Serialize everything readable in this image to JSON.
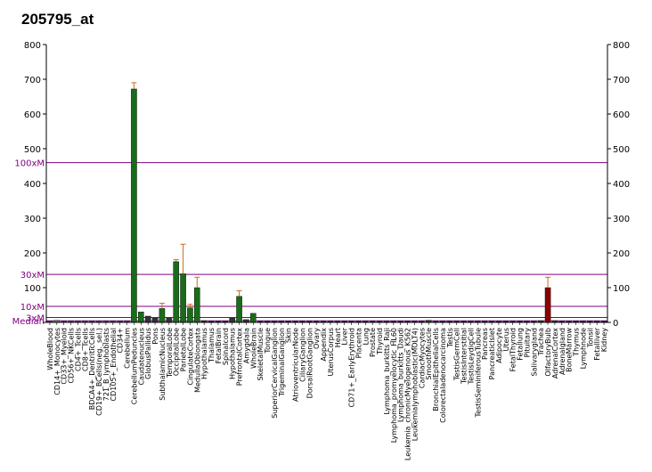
{
  "chart_data": {
    "type": "bar",
    "title": "205795_at",
    "ylim": [
      0,
      800
    ],
    "yticks": [
      0,
      100,
      200,
      300,
      400,
      500,
      600,
      700,
      800
    ],
    "reference_lines": [
      {
        "label": "100xM",
        "value": 460
      },
      {
        "label": "30xM",
        "value": 138
      },
      {
        "label": "10xM",
        "value": 46
      },
      {
        "label": "3xM",
        "value": 14
      },
      {
        "label": "Median",
        "value": 4.6
      }
    ],
    "categories": [
      "WholeBlood",
      "CD14+_Monocytes",
      "CD33+_Myeloid",
      "CD56+_NKCells",
      "CD4+_Tcells",
      "CD8+_Tcells",
      "BDCA4+_DentriticCells",
      "CD19+_BCells(neg._sel.)",
      "721_B_lymphoblasts",
      "CD105+_Endothelial",
      "CD34+",
      "Cerebellum",
      "CerebellumPeduncles",
      "Caudatenucleus",
      "GlobusPallidus",
      "Pons",
      "SubthalamicNucleus",
      "TemporalLobe",
      "OccipitalLobe",
      "ParietalLobe",
      "CingulateCortex",
      "MedullaOblongata",
      "Hypothalamus",
      "Thalamus",
      "FetalBrain",
      "Spinalcord",
      "Hypothalamus",
      "PrefrontalCortex",
      "Amygdala",
      "WholeBrain",
      "SkeletalMuscle",
      "Tongue",
      "SuperiorCervicalGanglion",
      "TrigeminalGanglion",
      "Skin",
      "AtrioventricularNode",
      "CiliaryGanglion",
      "DorsalRootGanglion",
      "Ovary",
      "Appendix",
      "UterusCorpus",
      "Heart",
      "Liver",
      "CD71+_EarlyErythroid",
      "Placenta",
      "Lung",
      "Prostate",
      "Thyroid",
      "Lymphoma_burkitts_Raji",
      "Lymphoma_promyelocytic_HL60",
      "Lymphoma_burkitts_Daudi",
      "Leukemia_chronicMyelogenous_K562",
      "Leukemialymphoblastic(MOLT4)",
      "CardiacMyocytes",
      "SmoothMuscle",
      "BronchialEpithelialCells",
      "Colorectaladenocarcinoma",
      "Testis",
      "TestisGermCell",
      "TestisInterstitial",
      "TestisLeydigCell",
      "TestisSeminiferousTubule",
      "Pancreas",
      "PancreaticIslet",
      "Adipocyte",
      "Uterus",
      "FetalThyroid",
      "Fetallung",
      "Pituitary",
      "Salivarygland",
      "Trachea",
      "OlfactoryBulb",
      "AdrenalCortex",
      "Adrenalgland",
      "BoneMarrow",
      "Thymus",
      "Lymphnode",
      "Tonsil",
      "Fetalliver",
      "Kidney"
    ],
    "values": [
      3,
      6,
      3,
      3,
      3,
      3,
      3,
      3,
      3,
      3,
      3,
      3,
      672,
      30,
      18,
      12,
      40,
      12,
      175,
      140,
      42,
      100,
      5,
      3,
      3,
      3,
      12,
      75,
      8,
      26,
      3,
      3,
      3,
      3,
      3,
      3,
      3,
      3,
      3,
      3,
      3,
      3,
      3,
      3,
      3,
      3,
      3,
      3,
      3,
      3,
      3,
      3,
      3,
      3,
      6,
      3,
      3,
      3,
      3,
      3,
      3,
      3,
      3,
      3,
      3,
      3,
      3,
      3,
      3,
      3,
      5,
      100,
      5,
      3,
      3,
      3,
      3,
      3,
      3,
      3
    ],
    "errors": [
      0,
      0,
      0,
      0,
      0,
      0,
      0,
      0,
      0,
      0,
      0,
      0,
      18,
      0,
      0,
      0,
      15,
      0,
      6,
      85,
      10,
      30,
      0,
      0,
      0,
      0,
      0,
      16,
      0,
      0,
      0,
      0,
      0,
      0,
      0,
      0,
      0,
      0,
      0,
      0,
      0,
      0,
      0,
      0,
      0,
      0,
      0,
      0,
      0,
      0,
      0,
      0,
      0,
      0,
      0,
      0,
      0,
      0,
      0,
      0,
      0,
      0,
      0,
      0,
      0,
      0,
      0,
      0,
      0,
      0,
      0,
      30,
      0,
      0,
      0,
      0,
      0,
      0,
      0,
      0
    ],
    "label_rows": [
      0,
      1,
      0,
      1,
      0,
      1,
      0,
      1,
      0,
      1,
      0,
      1,
      0,
      1,
      0,
      1,
      0,
      1,
      0,
      1,
      0,
      1,
      0,
      1,
      0,
      1,
      0,
      1,
      0,
      1,
      0,
      1,
      0,
      1,
      0,
      1,
      0,
      1,
      0,
      1,
      0,
      1,
      0,
      1,
      0,
      1,
      0,
      1,
      0,
      1,
      0,
      1,
      0,
      1,
      0,
      1,
      0,
      1,
      0,
      1,
      0,
      1,
      0,
      1,
      0,
      1,
      0,
      1,
      0,
      1,
      0,
      1,
      0,
      1,
      0,
      1,
      0,
      1,
      0,
      1
    ],
    "bar_colors": [
      "#6b6b6b",
      "#6b6b6b",
      "#6b6b6b",
      "#6b6b6b",
      "#6b6b6b",
      "#6b6b6b",
      "#6b6b6b",
      "#6b6b6b",
      "#6b6b6b",
      "#6b6b6b",
      "#6b6b6b",
      "#6b6b6b",
      "#1a6b1a",
      "#1a6b1a",
      "#333333",
      "#333333",
      "#1a6b1a",
      "#333333",
      "#1a6b1a",
      "#1a6b1a",
      "#1a6b1a",
      "#1a6b1a",
      "#333333",
      "#333333",
      "#333333",
      "#333333",
      "#333333",
      "#1a6b1a",
      "#333333",
      "#1a6b1a",
      "#333333",
      "#333333",
      "#333333",
      "#333333",
      "#333333",
      "#333333",
      "#333333",
      "#333333",
      "#333333",
      "#333333",
      "#333333",
      "#333333",
      "#333333",
      "#333333",
      "#333333",
      "#333333",
      "#333333",
      "#333333",
      "#333333",
      "#333333",
      "#333333",
      "#333333",
      "#333333",
      "#333333",
      "#333333",
      "#333333",
      "#333333",
      "#333333",
      "#333333",
      "#333333",
      "#333333",
      "#333333",
      "#333333",
      "#333333",
      "#333333",
      "#333333",
      "#333333",
      "#333333",
      "#333333",
      "#333333",
      "#333333",
      "#8b0000",
      "#333333",
      "#333333",
      "#333333",
      "#333333",
      "#333333",
      "#333333",
      "#333333",
      "#333333"
    ],
    "error_color": "#d2691e",
    "ref_line_color": "#800080",
    "axis_color": "#000000",
    "grid": false
  }
}
